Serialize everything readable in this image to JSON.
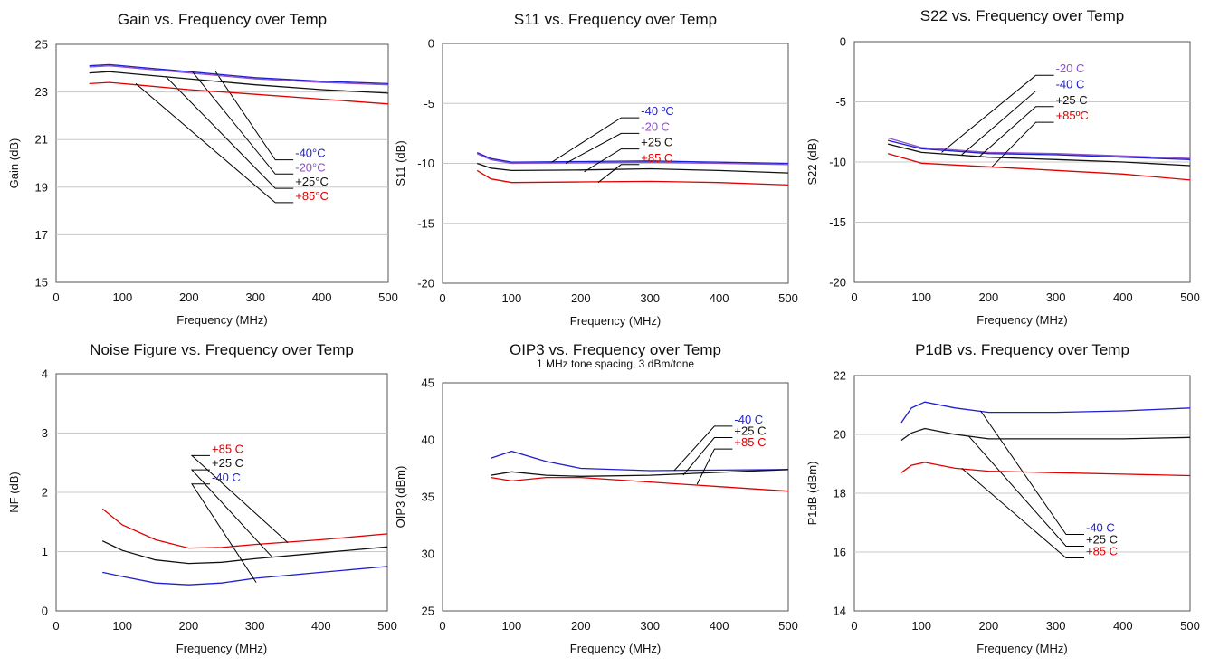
{
  "chart_data": [
    {
      "id": "gain",
      "type": "line",
      "title": "Gain vs. Frequency over Temp",
      "subtitle": "",
      "xlabel": "Frequency (MHz)",
      "ylabel": "Gain (dB)",
      "xlim": [
        0,
        500
      ],
      "ylim": [
        15,
        25
      ],
      "xticks": [
        0,
        100,
        200,
        300,
        400,
        500
      ],
      "yticks": [
        15,
        17,
        19,
        21,
        23,
        25
      ],
      "grid": true,
      "series": [
        {
          "name": "-40°C",
          "color": "#1f1fd1",
          "points": [
            [
              50,
              24.1
            ],
            [
              80,
              24.15
            ],
            [
              120,
              24.05
            ],
            [
              200,
              23.85
            ],
            [
              300,
              23.6
            ],
            [
              400,
              23.45
            ],
            [
              500,
              23.35
            ]
          ],
          "label_at": [
            360,
            20.15
          ],
          "anchor": [
            240,
            23.85
          ]
        },
        {
          "name": "-20°C",
          "color": "#8f4fc7",
          "points": [
            [
              50,
              24.05
            ],
            [
              80,
              24.1
            ],
            [
              120,
              24.0
            ],
            [
              200,
              23.8
            ],
            [
              300,
              23.55
            ],
            [
              400,
              23.4
            ],
            [
              500,
              23.3
            ]
          ],
          "label_at": [
            360,
            19.55
          ],
          "anchor": [
            205,
            23.85
          ]
        },
        {
          "name": "+25°C",
          "color": "#111111",
          "points": [
            [
              50,
              23.8
            ],
            [
              80,
              23.85
            ],
            [
              120,
              23.75
            ],
            [
              200,
              23.55
            ],
            [
              300,
              23.3
            ],
            [
              400,
              23.1
            ],
            [
              500,
              22.95
            ]
          ],
          "label_at": [
            360,
            18.95
          ],
          "anchor": [
            165,
            23.65
          ]
        },
        {
          "name": "+85°C",
          "color": "#e00000",
          "points": [
            [
              50,
              23.35
            ],
            [
              80,
              23.4
            ],
            [
              120,
              23.3
            ],
            [
              200,
              23.1
            ],
            [
              300,
              22.9
            ],
            [
              400,
              22.7
            ],
            [
              500,
              22.5
            ]
          ],
          "label_at": [
            360,
            18.35
          ],
          "anchor": [
            120,
            23.35
          ]
        }
      ]
    },
    {
      "id": "s11",
      "type": "line",
      "title": "S11 vs. Frequency over Temp",
      "subtitle": "",
      "xlabel": "Frequency (MHz)",
      "ylabel": "S11 (dB)",
      "xlim": [
        0,
        500
      ],
      "ylim": [
        -20,
        0
      ],
      "xticks": [
        0,
        100,
        200,
        300,
        400,
        500
      ],
      "yticks": [
        -20,
        -15,
        -10,
        -5,
        0
      ],
      "grid": true,
      "series": [
        {
          "name": "-40 ºC",
          "color": "#1f1fd1",
          "points": [
            [
              50,
              -9.1
            ],
            [
              70,
              -9.6
            ],
            [
              100,
              -9.9
            ],
            [
              200,
              -9.85
            ],
            [
              300,
              -9.8
            ],
            [
              400,
              -9.9
            ],
            [
              500,
              -10.0
            ]
          ],
          "label_at": [
            287,
            -6.2
          ],
          "anchor": [
            158,
            -9.9
          ]
        },
        {
          "name": "-20 C",
          "color": "#8f4fc7",
          "points": [
            [
              50,
              -9.2
            ],
            [
              70,
              -9.7
            ],
            [
              100,
              -10.0
            ],
            [
              200,
              -9.95
            ],
            [
              300,
              -9.9
            ],
            [
              400,
              -10.0
            ],
            [
              500,
              -10.1
            ]
          ],
          "label_at": [
            287,
            -7.5
          ],
          "anchor": [
            178,
            -10.0
          ]
        },
        {
          "name": "+25 C",
          "color": "#111111",
          "points": [
            [
              50,
              -10.0
            ],
            [
              70,
              -10.4
            ],
            [
              100,
              -10.6
            ],
            [
              200,
              -10.55
            ],
            [
              300,
              -10.45
            ],
            [
              400,
              -10.6
            ],
            [
              500,
              -10.8
            ]
          ],
          "label_at": [
            287,
            -8.8
          ],
          "anchor": [
            205,
            -10.7
          ]
        },
        {
          "name": "+85 C",
          "color": "#e00000",
          "points": [
            [
              50,
              -10.6
            ],
            [
              70,
              -11.3
            ],
            [
              100,
              -11.6
            ],
            [
              200,
              -11.55
            ],
            [
              300,
              -11.5
            ],
            [
              400,
              -11.6
            ],
            [
              500,
              -11.8
            ]
          ],
          "label_at": [
            287,
            -10.1
          ],
          "anchor": [
            225,
            -11.6
          ]
        }
      ]
    },
    {
      "id": "s22",
      "type": "line",
      "title": "S22 vs. Frequency over Temp",
      "subtitle": "",
      "xlabel": "Frequency (MHz)",
      "ylabel": "S22 (dB)",
      "xlim": [
        0,
        500
      ],
      "ylim": [
        -20,
        0
      ],
      "xticks": [
        0,
        100,
        200,
        300,
        400,
        500
      ],
      "yticks": [
        -20,
        -15,
        -10,
        -5,
        0
      ],
      "grid": true,
      "series": [
        {
          "name": "-20 C",
          "color": "#8f4fc7",
          "points": [
            [
              50,
              -8.0
            ],
            [
              100,
              -8.8
            ],
            [
              200,
              -9.2
            ],
            [
              300,
              -9.3
            ],
            [
              400,
              -9.5
            ],
            [
              500,
              -9.7
            ]
          ],
          "label_at": [
            300,
            -2.8
          ],
          "anchor": [
            130,
            -9.2
          ]
        },
        {
          "name": "-40 C",
          "color": "#1f1fd1",
          "points": [
            [
              50,
              -8.2
            ],
            [
              100,
              -8.9
            ],
            [
              200,
              -9.3
            ],
            [
              300,
              -9.4
            ],
            [
              400,
              -9.6
            ],
            [
              500,
              -9.8
            ]
          ],
          "label_at": [
            300,
            -4.1
          ],
          "anchor": [
            160,
            -9.4
          ]
        },
        {
          "name": "+25 C",
          "color": "#111111",
          "points": [
            [
              50,
              -8.5
            ],
            [
              100,
              -9.2
            ],
            [
              200,
              -9.6
            ],
            [
              300,
              -9.8
            ],
            [
              400,
              -10.0
            ],
            [
              500,
              -10.3
            ]
          ],
          "label_at": [
            300,
            -5.4
          ],
          "anchor": [
            185,
            -9.6
          ]
        },
        {
          "name": "+85ºC",
          "color": "#e00000",
          "points": [
            [
              50,
              -9.3
            ],
            [
              100,
              -10.1
            ],
            [
              200,
              -10.4
            ],
            [
              300,
              -10.7
            ],
            [
              400,
              -11.0
            ],
            [
              500,
              -11.5
            ]
          ],
          "label_at": [
            300,
            -6.7
          ],
          "anchor": [
            205,
            -10.4
          ]
        }
      ]
    },
    {
      "id": "nf",
      "type": "line",
      "title": "Noise Figure vs. Frequency over Temp",
      "subtitle": "",
      "xlabel": "Frequency (MHz)",
      "ylabel": "NF (dB)",
      "xlim": [
        0,
        500
      ],
      "ylim": [
        0,
        4
      ],
      "xticks": [
        0,
        100,
        200,
        300,
        400,
        500
      ],
      "yticks": [
        0,
        1,
        2,
        3,
        4
      ],
      "grid": true,
      "series": [
        {
          "name": "+85 C",
          "color": "#e00000",
          "points": [
            [
              70,
              1.72
            ],
            [
              100,
              1.45
            ],
            [
              150,
              1.2
            ],
            [
              200,
              1.06
            ],
            [
              250,
              1.07
            ],
            [
              300,
              1.12
            ],
            [
              400,
              1.2
            ],
            [
              500,
              1.3
            ]
          ],
          "label_at": [
            235,
            2.62
          ],
          "anchor": [
            350,
            1.15
          ]
        },
        {
          "name": "+25 C",
          "color": "#111111",
          "points": [
            [
              70,
              1.18
            ],
            [
              100,
              1.02
            ],
            [
              150,
              0.86
            ],
            [
              200,
              0.8
            ],
            [
              250,
              0.82
            ],
            [
              300,
              0.88
            ],
            [
              400,
              0.98
            ],
            [
              500,
              1.08
            ]
          ],
          "label_at": [
            235,
            2.38
          ],
          "anchor": [
            325,
            0.92
          ]
        },
        {
          "name": "-40 C",
          "color": "#1f1fd1",
          "points": [
            [
              70,
              0.65
            ],
            [
              100,
              0.58
            ],
            [
              150,
              0.47
            ],
            [
              200,
              0.44
            ],
            [
              250,
              0.47
            ],
            [
              300,
              0.55
            ],
            [
              400,
              0.65
            ],
            [
              500,
              0.75
            ]
          ],
          "label_at": [
            235,
            2.14
          ],
          "anchor": [
            302,
            0.48
          ]
        }
      ]
    },
    {
      "id": "oip3",
      "type": "line",
      "title": "OIP3 vs. Frequency over Temp",
      "subtitle": "1 MHz tone spacing, 3 dBm/tone",
      "xlabel": "Frequency (MHz)",
      "ylabel": "OIP3 (dBm)",
      "xlim": [
        0,
        500
      ],
      "ylim": [
        25,
        45
      ],
      "xticks": [
        0,
        100,
        200,
        300,
        400,
        500
      ],
      "yticks": [
        25,
        30,
        35,
        40,
        45
      ],
      "grid": false,
      "series": [
        {
          "name": "-40 C",
          "color": "#1f1fd1",
          "points": [
            [
              70,
              38.4
            ],
            [
              100,
              39.0
            ],
            [
              150,
              38.1
            ],
            [
              200,
              37.5
            ],
            [
              300,
              37.3
            ],
            [
              400,
              37.35
            ],
            [
              500,
              37.4
            ]
          ],
          "label_at": [
            422,
            41.2
          ],
          "anchor": [
            335,
            37.3
          ]
        },
        {
          "name": "+25 C",
          "color": "#111111",
          "points": [
            [
              70,
              36.9
            ],
            [
              100,
              37.2
            ],
            [
              150,
              36.9
            ],
            [
              200,
              36.8
            ],
            [
              300,
              36.9
            ],
            [
              400,
              37.15
            ],
            [
              500,
              37.4
            ]
          ],
          "label_at": [
            422,
            40.2
          ],
          "anchor": [
            348,
            36.9
          ]
        },
        {
          "name": "+85 C",
          "color": "#e00000",
          "points": [
            [
              70,
              36.7
            ],
            [
              100,
              36.4
            ],
            [
              150,
              36.7
            ],
            [
              200,
              36.7
            ],
            [
              300,
              36.3
            ],
            [
              400,
              35.9
            ],
            [
              500,
              35.5
            ]
          ],
          "label_at": [
            422,
            39.2
          ],
          "anchor": [
            368,
            36.1
          ]
        }
      ]
    },
    {
      "id": "p1db",
      "type": "line",
      "title": "P1dB vs. Frequency over Temp",
      "subtitle": "",
      "xlabel": "Frequency (MHz)",
      "ylabel": "P1dB (dBm)",
      "xlim": [
        0,
        500
      ],
      "ylim": [
        14,
        22
      ],
      "xticks": [
        0,
        100,
        200,
        300,
        400,
        500
      ],
      "yticks": [
        14,
        16,
        18,
        20,
        22
      ],
      "grid": true,
      "series": [
        {
          "name": "-40 C",
          "color": "#1f1fd1",
          "points": [
            [
              70,
              20.4
            ],
            [
              85,
              20.9
            ],
            [
              105,
              21.1
            ],
            [
              150,
              20.9
            ],
            [
              200,
              20.75
            ],
            [
              300,
              20.75
            ],
            [
              400,
              20.8
            ],
            [
              500,
              20.9
            ]
          ],
          "label_at": [
            345,
            16.6
          ],
          "anchor": [
            188,
            20.8
          ]
        },
        {
          "name": "+25 C",
          "color": "#111111",
          "points": [
            [
              70,
              19.8
            ],
            [
              85,
              20.05
            ],
            [
              105,
              20.2
            ],
            [
              150,
              20.0
            ],
            [
              200,
              19.85
            ],
            [
              300,
              19.85
            ],
            [
              400,
              19.85
            ],
            [
              500,
              19.9
            ]
          ],
          "label_at": [
            345,
            16.2
          ],
          "anchor": [
            170,
            19.95
          ]
        },
        {
          "name": "+85 C",
          "color": "#e00000",
          "points": [
            [
              70,
              18.7
            ],
            [
              85,
              18.95
            ],
            [
              105,
              19.05
            ],
            [
              150,
              18.85
            ],
            [
              200,
              18.75
            ],
            [
              300,
              18.7
            ],
            [
              400,
              18.65
            ],
            [
              500,
              18.6
            ]
          ],
          "label_at": [
            345,
            15.8
          ],
          "anchor": [
            160,
            18.85
          ]
        }
      ]
    }
  ]
}
